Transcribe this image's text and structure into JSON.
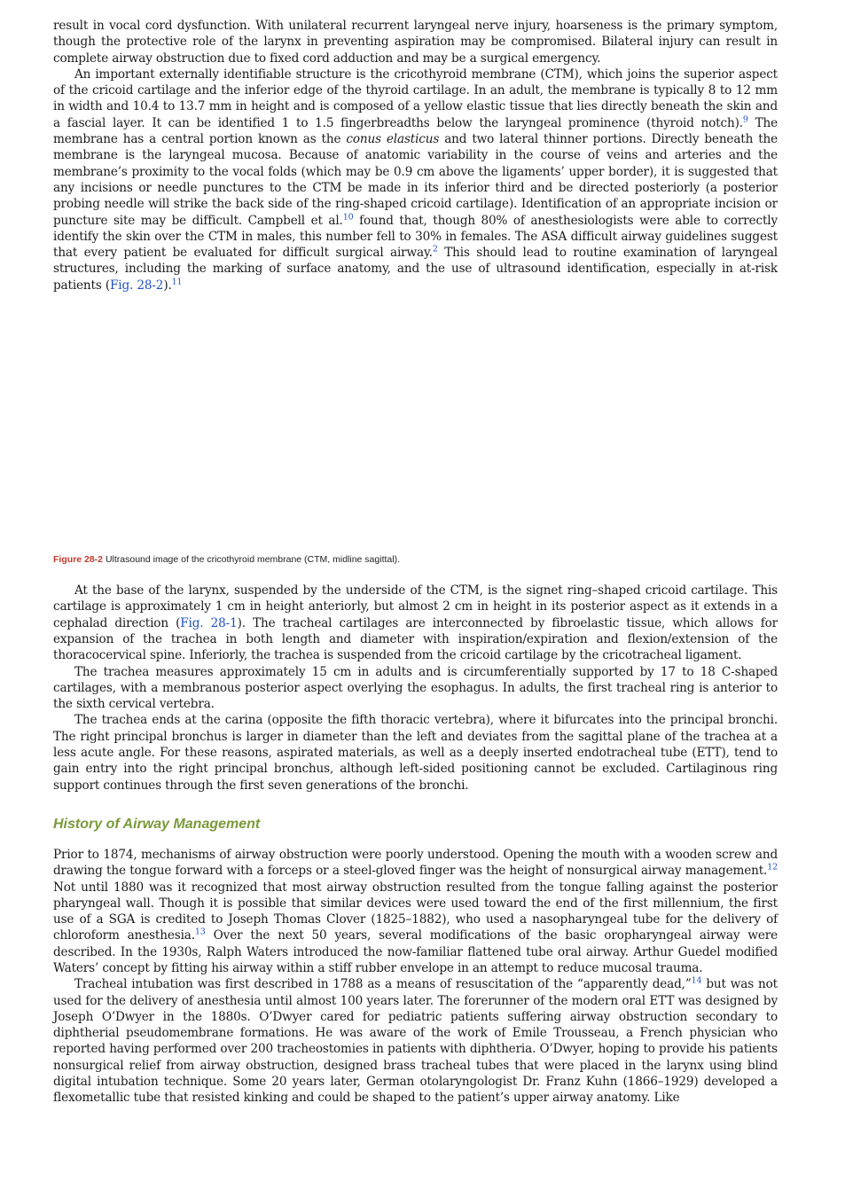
{
  "p1": {
    "t1": "result in vocal cord dysfunction. With unilateral recurrent laryngeal nerve injury, hoarseness is the primary symptom, though the protective role of the larynx in preventing aspiration may be compromised. Bilateral injury can result in complete airway obstruction due to fixed cord adduction and may be a surgical emergency."
  },
  "p2": {
    "t1": "An important externally identifiable structure is the cricothyroid membrane (CTM), which joins the superior aspect of the cricoid cartilage and the inferior edge of the thyroid cartilage. In an adult, the membrane is typically 8 to 12 mm in width and 10.4 to 13.7 mm in height and is composed of a yellow elastic tissue that lies directly beneath the skin and a fascial layer. It can be identified 1 to 1.5 fingerbreadths below the laryngeal prominence (thyroid notch).",
    "r1": "9",
    "t2": " The membrane has a central portion known as the ",
    "em": "conus elasticus",
    "t3": " and two lateral thinner portions. Directly beneath the membrane is the laryngeal mucosa. Because of anatomic variability in the course of veins and arteries and the membrane’s proximity to the vocal folds (which may be 0.9 cm above the ligaments’ upper border), it is suggested that any incisions or needle punctures to the CTM be made in its inferior third and be directed posteriorly (a posterior probing needle will strike the back side of the ring-shaped cricoid cartilage). Identification of an appropriate incision or puncture site may be difficult. Campbell et al.",
    "r2": "10",
    "t4": " found that, though 80% of anesthesiologists were able to correctly identify the skin over the CTM in males, this number fell to 30% in females. The ASA difficult airway guidelines suggest that every patient be evaluated for difficult surgical airway.",
    "r3": "2",
    "t5": " This should lead to routine examination of laryngeal structures, including the marking of surface anatomy, and the use of ultrasound identification, especially in at-risk patients (",
    "link": "Fig. 28-2",
    "t6": ").",
    "r4": "11"
  },
  "caption": {
    "label": "Figure 28-2",
    "text": " Ultrasound image of the cricothyroid membrane (CTM, midline sagittal)."
  },
  "p3": {
    "t1": "At the base of the larynx, suspended by the underside of the CTM, is the signet ring–shaped cricoid cartilage. This cartilage is approximately 1 cm in height anteriorly, but almost 2 cm in height in its posterior aspect as it extends in a cephalad direction (",
    "link": "Fig. 28-1",
    "t2": "). The tracheal cartilages are interconnected by fibroelastic tissue, which allows for expansion of the trachea in both length and diameter with inspiration/expiration and flexion/extension of the thoracocervical spine. Inferiorly, the trachea is suspended from the cricoid cartilage by the cricotracheal ligament."
  },
  "p4": {
    "t1": "The trachea measures approximately 15 cm in adults and is circumferentially supported by 17 to 18 C-shaped cartilages, with a membranous posterior aspect overlying the esophagus. In adults, the first tracheal ring is anterior to the sixth cervical vertebra."
  },
  "p5": {
    "t1": "The trachea ends at the carina (opposite the fifth thoracic vertebra), where it bifurcates into the principal bronchi. The right principal bronchus is larger in diameter than the left and deviates from the sagittal plane of the trachea at a less acute angle. For these reasons, aspirated materials, as well as a deeply inserted endotracheal tube (ETT), tend to gain entry into the right principal bronchus, although left-sided positioning cannot be excluded. Cartilaginous ring support continues through the first seven generations of the bronchi."
  },
  "section": {
    "title": "History of Airway Management"
  },
  "p6": {
    "t1": "Prior to 1874, mechanisms of airway obstruction were poorly understood. Opening the mouth with a wooden screw and drawing the tongue forward with a forceps or a steel-gloved finger was the height of nonsurgical airway management.",
    "r1": "12",
    "t2": " Not until 1880 was it recognized that most airway obstruction resulted from the tongue falling against the posterior pharyngeal wall. Though it is possible that similar devices were used toward the end of the first millennium, the first use of a SGA is credited to Joseph Thomas Clover (1825–1882), who used a nasopharyngeal tube for the delivery of chloroform anesthesia.",
    "r2": "13",
    "t3": " Over the next 50 years, several modifications of the basic oropharyngeal airway were described. In the 1930s, Ralph Waters introduced the now-familiar flattened tube oral airway. Arthur Guedel modified Waters’ concept by fitting his airway within a stiff rubber envelope in an attempt to reduce mucosal trauma."
  },
  "p7": {
    "t1": "Tracheal intubation was first described in 1788 as a means of resuscitation of the “apparently dead,”",
    "r1": "14",
    "t2": " but was not used for the delivery of anesthesia until almost 100 years later. The forerunner of the modern oral ETT was designed by Joseph O’Dwyer in the 1880s. O’Dwyer cared for pediatric patients suffering airway obstruction secondary to diphtherial pseudomembrane formations. He was aware of the work of Emile Trousseau, a French physician who reported having performed over 200 tracheostomies in patients with diphtheria. O’Dwyer, hoping to provide his patients nonsurgical relief from airway obstruction, designed brass tracheal tubes that were placed in the larynx using blind digital intubation technique. Some 20 years later, German otolaryngologist Dr. Franz Kuhn (1866–1929) developed a flexometallic tube that resisted kinking and could be shaped to the patient’s upper airway anatomy. Like"
  }
}
